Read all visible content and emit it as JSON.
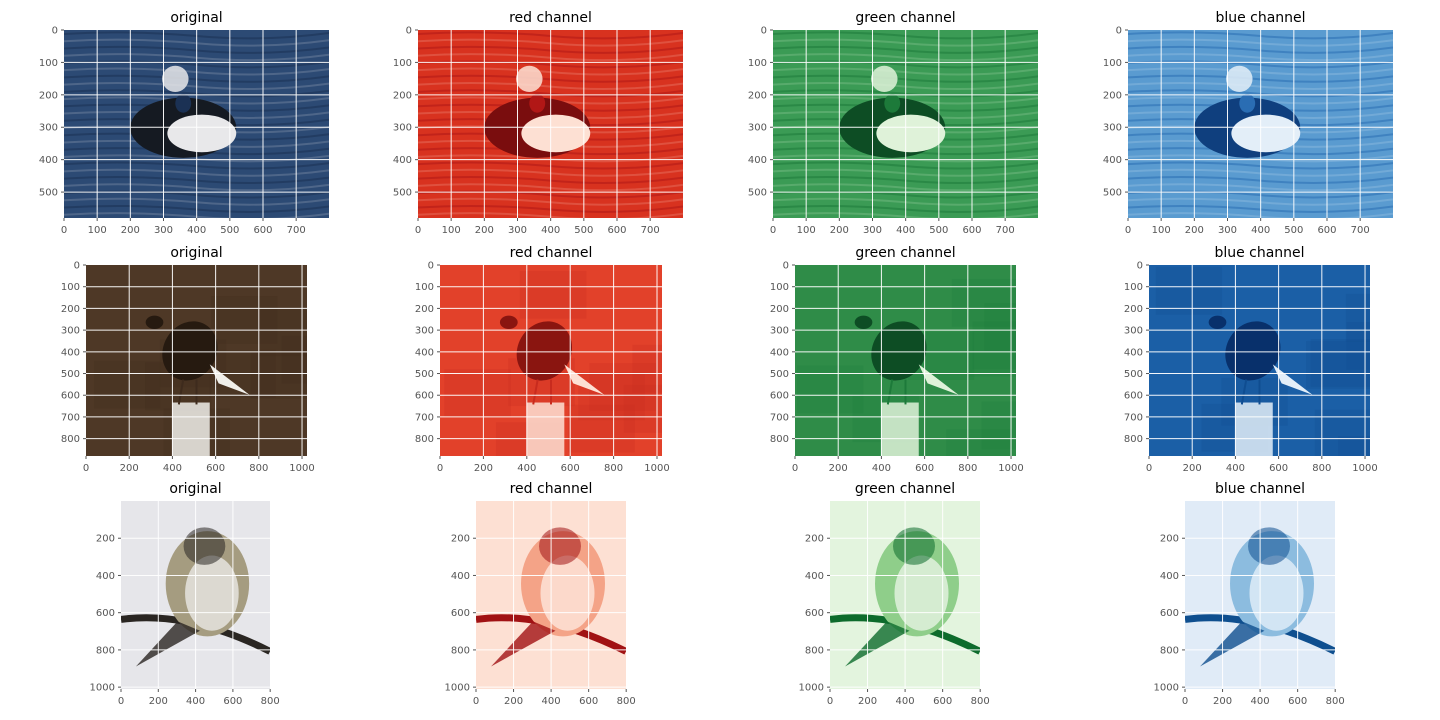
{
  "chart_data": [
    {
      "type": "image",
      "title": "original",
      "palette": "sea-orig",
      "subject": "duck",
      "xlim": [
        0,
        799
      ],
      "ylim": [
        0,
        580
      ],
      "xticks": [
        0,
        100,
        200,
        300,
        400,
        500,
        600,
        700
      ],
      "yticks": [
        0,
        100,
        200,
        300,
        400,
        500
      ]
    },
    {
      "type": "image",
      "title": "red channel",
      "palette": "reds",
      "subject": "duck",
      "xlim": [
        0,
        799
      ],
      "ylim": [
        0,
        580
      ],
      "xticks": [
        0,
        100,
        200,
        300,
        400,
        500,
        600,
        700
      ],
      "yticks": [
        0,
        100,
        200,
        300,
        400,
        500
      ]
    },
    {
      "type": "image",
      "title": "green channel",
      "palette": "greens",
      "subject": "duck",
      "xlim": [
        0,
        799
      ],
      "ylim": [
        0,
        580
      ],
      "xticks": [
        0,
        100,
        200,
        300,
        400,
        500,
        600,
        700
      ],
      "yticks": [
        0,
        100,
        200,
        300,
        400,
        500
      ]
    },
    {
      "type": "image",
      "title": "blue channel",
      "palette": "blues",
      "subject": "duck",
      "xlim": [
        0,
        799
      ],
      "ylim": [
        0,
        580
      ],
      "xticks": [
        0,
        100,
        200,
        300,
        400,
        500,
        600,
        700
      ],
      "yticks": [
        0,
        100,
        200,
        300,
        400,
        500
      ]
    },
    {
      "type": "image",
      "title": "original",
      "palette": "brown-orig",
      "subject": "hawk",
      "xlim": [
        0,
        1023
      ],
      "ylim": [
        0,
        880
      ],
      "xticks": [
        0,
        200,
        400,
        600,
        800,
        1000
      ],
      "yticks": [
        0,
        100,
        200,
        300,
        400,
        500,
        600,
        700,
        800
      ]
    },
    {
      "type": "image",
      "title": "red channel",
      "palette": "reds-dark",
      "subject": "hawk",
      "xlim": [
        0,
        1023
      ],
      "ylim": [
        0,
        880
      ],
      "xticks": [
        0,
        200,
        400,
        600,
        800,
        1000
      ],
      "yticks": [
        0,
        100,
        200,
        300,
        400,
        500,
        600,
        700,
        800
      ]
    },
    {
      "type": "image",
      "title": "green channel",
      "palette": "greens-dark",
      "subject": "hawk",
      "xlim": [
        0,
        1023
      ],
      "ylim": [
        0,
        880
      ],
      "xticks": [
        0,
        200,
        400,
        600,
        800,
        1000
      ],
      "yticks": [
        0,
        100,
        200,
        300,
        400,
        500,
        600,
        700,
        800
      ]
    },
    {
      "type": "image",
      "title": "blue channel",
      "palette": "blues-dark",
      "subject": "hawk",
      "xlim": [
        0,
        1023
      ],
      "ylim": [
        0,
        880
      ],
      "xticks": [
        0,
        200,
        400,
        600,
        800,
        1000
      ],
      "yticks": [
        0,
        100,
        200,
        300,
        400,
        500,
        600,
        700,
        800
      ]
    },
    {
      "type": "image",
      "title": "original",
      "palette": "grey-orig",
      "subject": "finch",
      "xlim": [
        0,
        799
      ],
      "ylim": [
        0,
        1010
      ],
      "xticks": [
        0,
        200,
        400,
        600,
        800
      ],
      "yticks": [
        200,
        400,
        600,
        800,
        1000
      ]
    },
    {
      "type": "image",
      "title": "red channel",
      "palette": "reds-light",
      "subject": "finch",
      "xlim": [
        0,
        799
      ],
      "ylim": [
        0,
        1010
      ],
      "xticks": [
        0,
        200,
        400,
        600,
        800
      ],
      "yticks": [
        200,
        400,
        600,
        800,
        1000
      ]
    },
    {
      "type": "image",
      "title": "green channel",
      "palette": "greens-light",
      "subject": "finch",
      "xlim": [
        0,
        799
      ],
      "ylim": [
        0,
        1010
      ],
      "xticks": [
        0,
        200,
        400,
        600,
        800
      ],
      "yticks": [
        200,
        400,
        600,
        800,
        1000
      ]
    },
    {
      "type": "image",
      "title": "blue channel",
      "palette": "blues-light",
      "subject": "finch",
      "xlim": [
        0,
        799
      ],
      "ylim": [
        0,
        1010
      ],
      "xticks": [
        0,
        200,
        400,
        600,
        800
      ],
      "yticks": [
        200,
        400,
        600,
        800,
        1000
      ]
    }
  ],
  "palettes": {
    "sea-orig": {
      "bg": "#2c4a74",
      "accent": "#1b3154",
      "light": "#e8e8ea",
      "dark": "#151a22"
    },
    "reds": {
      "bg": "#d8321f",
      "accent": "#b11716",
      "light": "#fde0d3",
      "dark": "#7a0d0e"
    },
    "greens": {
      "bg": "#3b9b55",
      "accent": "#1d7a3a",
      "light": "#dff2d9",
      "dark": "#0d4d24"
    },
    "blues": {
      "bg": "#5a9bd0",
      "accent": "#2a6db3",
      "light": "#e3eef8",
      "dark": "#0f3f7e"
    },
    "brown-orig": {
      "bg": "#4e3826",
      "accent": "#3e2b1d",
      "light": "#f0efea",
      "dark": "#261a10"
    },
    "reds-dark": {
      "bg": "#e2412a",
      "accent": "#c82b1e",
      "light": "#fde0d3",
      "dark": "#8a1510"
    },
    "greens-dark": {
      "bg": "#2f8c48",
      "accent": "#1d7a3a",
      "light": "#dff2d9",
      "dark": "#0d4d24"
    },
    "blues-dark": {
      "bg": "#1b5fa6",
      "accent": "#0f4d91",
      "light": "#e3eef8",
      "dark": "#08306b"
    },
    "grey-orig": {
      "bg": "#e6e6ea",
      "accent": "#a59c80",
      "light": "#f4f4f4",
      "dark": "#2a2622"
    },
    "reds-light": {
      "bg": "#fde0d3",
      "accent": "#f4a387",
      "light": "#fff0e8",
      "dark": "#a11214"
    },
    "greens-light": {
      "bg": "#e3f4de",
      "accent": "#8fce8a",
      "light": "#f2faef",
      "dark": "#0d6b2c"
    },
    "blues-light": {
      "bg": "#e0ebf7",
      "accent": "#8cbcdf",
      "light": "#f0f6fc",
      "dark": "#0f4f8f"
    }
  }
}
